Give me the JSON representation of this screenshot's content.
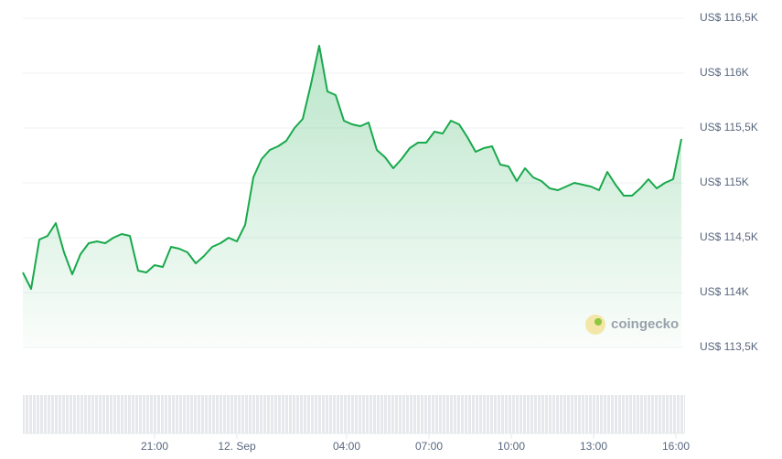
{
  "chart_data": {
    "type": "area",
    "watermark": "coingecko",
    "x": [
      16.2,
      16.5,
      16.8,
      17.1,
      17.4,
      17.7,
      18.0,
      18.3,
      18.6,
      18.9,
      19.2,
      19.5,
      19.8,
      20.1,
      20.4,
      20.7,
      21.0,
      21.3,
      21.6,
      21.9,
      22.2,
      22.5,
      22.8,
      23.1,
      23.4,
      23.7,
      24.0,
      24.3,
      24.6,
      24.9,
      25.2,
      25.5,
      25.8,
      26.1,
      26.4,
      26.7,
      27.0,
      27.3,
      27.6,
      27.9,
      28.2,
      28.5,
      28.8,
      29.1,
      29.4,
      29.7,
      30.0,
      30.3,
      30.6,
      30.9,
      31.2,
      31.5,
      31.8,
      32.1,
      32.4,
      32.7,
      33.0,
      33.3,
      33.6,
      33.9,
      34.2,
      34.5,
      34.8,
      35.1,
      35.4,
      35.7,
      36.0,
      36.3,
      36.6,
      36.9,
      37.2,
      37.5,
      37.8,
      38.1,
      38.4,
      38.7,
      39.0,
      39.3,
      39.6,
      39.9,
      40.2
    ],
    "series": [
      {
        "color": "#18a94b",
        "values": [
          114183,
          114033,
          114483,
          114517,
          114633,
          114367,
          114167,
          114350,
          114450,
          114467,
          114450,
          114500,
          114533,
          114517,
          114200,
          114183,
          114250,
          114233,
          114417,
          114400,
          114367,
          114267,
          114333,
          114417,
          114450,
          114500,
          114467,
          114617,
          115050,
          115217,
          115300,
          115333,
          115383,
          115500,
          115583,
          115900,
          116250,
          115833,
          115800,
          115567,
          115533,
          115517,
          115550,
          115300,
          115233,
          115133,
          115217,
          115317,
          115367,
          115367,
          115467,
          115450,
          115567,
          115533,
          115417,
          115283,
          115317,
          115333,
          115167,
          115150,
          115017,
          115133,
          115050,
          115017,
          114950,
          114933,
          114967,
          115000,
          114983,
          114967,
          114933,
          115100,
          114983,
          114883,
          114883,
          114950,
          115033,
          114950,
          115000,
          115033,
          115400
        ]
      }
    ],
    "xlim": [
      16.2,
      40.3
    ],
    "xticks": [
      {
        "value": 21,
        "label": "21:00"
      },
      {
        "value": 24,
        "label": "12. Sep"
      },
      {
        "value": 28,
        "label": "04:00"
      },
      {
        "value": 31,
        "label": "07:00"
      },
      {
        "value": 34,
        "label": "10:00"
      },
      {
        "value": 37,
        "label": "13:00"
      },
      {
        "value": 40,
        "label": "16:00"
      }
    ],
    "ylim": [
      113500,
      116500
    ],
    "yticks": [
      {
        "value": 113500,
        "label": "US$ 113,5K"
      },
      {
        "value": 114000,
        "label": "US$ 114K"
      },
      {
        "value": 114500,
        "label": "US$ 114,5K"
      },
      {
        "value": 115000,
        "label": "US$ 115K"
      },
      {
        "value": 115500,
        "label": "US$ 115,5K"
      },
      {
        "value": 116000,
        "label": "US$ 116K"
      },
      {
        "value": 116500,
        "label": "US$ 116,5K"
      }
    ],
    "grid": true
  }
}
